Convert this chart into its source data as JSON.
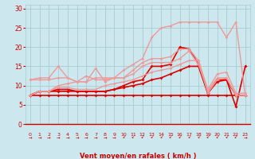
{
  "title": "",
  "xlabel": "Vent moyen/en rafales ( km/h )",
  "bg_color": "#cce8ee",
  "grid_color": "#aacccc",
  "axis_color": "#cc0000",
  "text_color": "#cc0000",
  "xlim": [
    -0.5,
    23.5
  ],
  "ylim": [
    0,
    31
  ],
  "yticks": [
    0,
    5,
    10,
    15,
    20,
    25,
    30
  ],
  "xticks": [
    0,
    1,
    2,
    3,
    4,
    5,
    6,
    7,
    8,
    9,
    10,
    11,
    12,
    13,
    14,
    15,
    16,
    17,
    18,
    19,
    20,
    21,
    22,
    23
  ],
  "lines": [
    {
      "x": [
        0,
        1,
        2,
        3,
        4,
        5,
        6,
        7,
        8,
        9,
        10,
        11,
        12,
        13,
        14,
        15,
        16,
        17,
        18,
        19,
        20,
        21,
        22,
        23
      ],
      "y": [
        7.5,
        7.5,
        7.5,
        7.5,
        7.5,
        7.5,
        7.5,
        7.5,
        7.5,
        7.5,
        7.5,
        7.5,
        7.5,
        7.5,
        7.5,
        7.5,
        7.5,
        7.5,
        7.5,
        7.5,
        7.5,
        7.5,
        7.5,
        7.5
      ],
      "color": "#dd0000",
      "lw": 1.2,
      "marker": "D",
      "ms": 2.0
    },
    {
      "x": [
        0,
        1,
        2,
        3,
        4,
        5,
        6,
        7,
        8,
        9,
        10,
        11,
        12,
        13,
        14,
        15,
        16,
        17,
        18,
        19,
        20,
        21,
        22,
        23
      ],
      "y": [
        7.5,
        8.5,
        8.5,
        8.5,
        8.5,
        8.5,
        8.5,
        8.5,
        8.5,
        9.0,
        9.5,
        10.0,
        10.5,
        11.5,
        12.0,
        13.0,
        14.0,
        15.0,
        15.0,
        8.0,
        11.0,
        11.5,
        7.5,
        7.5
      ],
      "color": "#dd0000",
      "lw": 1.2,
      "marker": "D",
      "ms": 2.0
    },
    {
      "x": [
        0,
        1,
        2,
        3,
        4,
        5,
        6,
        7,
        8,
        9,
        10,
        11,
        12,
        13,
        14,
        15,
        16,
        17,
        18,
        19,
        20,
        21,
        22,
        23
      ],
      "y": [
        7.5,
        8.5,
        8.5,
        9.0,
        9.0,
        8.5,
        8.5,
        8.5,
        8.5,
        9.0,
        10.0,
        11.0,
        11.5,
        15.0,
        15.0,
        15.5,
        20.0,
        19.5,
        15.5,
        8.0,
        11.5,
        11.5,
        4.5,
        15.0
      ],
      "color": "#dd0000",
      "lw": 1.2,
      "marker": "D",
      "ms": 2.0
    },
    {
      "x": [
        0,
        1,
        2,
        3,
        4,
        5,
        6,
        7,
        8,
        9,
        10,
        11,
        12,
        13,
        14,
        15,
        16,
        17,
        18,
        19,
        20,
        21,
        22,
        23
      ],
      "y": [
        11.5,
        11.5,
        11.5,
        12.0,
        12.0,
        11.0,
        11.0,
        12.0,
        12.0,
        12.0,
        12.0,
        13.0,
        15.0,
        16.0,
        16.0,
        16.0,
        17.0,
        19.0,
        15.5,
        8.5,
        12.0,
        12.0,
        7.5,
        7.5
      ],
      "color": "#ee9999",
      "lw": 1.0,
      "marker": "D",
      "ms": 1.8
    },
    {
      "x": [
        0,
        1,
        2,
        3,
        4,
        5,
        6,
        7,
        8,
        9,
        10,
        11,
        12,
        13,
        14,
        15,
        16,
        17,
        18,
        19,
        20,
        21,
        22,
        23
      ],
      "y": [
        11.5,
        12.0,
        12.0,
        15.0,
        12.0,
        11.0,
        12.5,
        11.5,
        11.5,
        12.0,
        12.0,
        14.0,
        16.0,
        17.0,
        17.0,
        17.5,
        19.5,
        19.5,
        16.5,
        9.0,
        13.0,
        13.5,
        8.0,
        8.0
      ],
      "color": "#ee9999",
      "lw": 1.0,
      "marker": "D",
      "ms": 1.8
    },
    {
      "x": [
        0,
        1,
        2,
        3,
        4,
        5,
        6,
        7,
        8,
        9,
        10,
        11,
        12,
        13,
        14,
        15,
        16,
        17,
        18,
        19,
        20,
        21,
        22,
        23
      ],
      "y": [
        7.5,
        8.5,
        8.5,
        10.0,
        10.5,
        11.0,
        11.0,
        14.5,
        11.0,
        12.0,
        14.0,
        15.5,
        17.0,
        22.5,
        25.0,
        25.5,
        26.5,
        26.5,
        26.5,
        26.5,
        26.5,
        22.5,
        26.5,
        7.5
      ],
      "color": "#ee9999",
      "lw": 1.0,
      "marker": "D",
      "ms": 1.8
    },
    {
      "x": [
        0,
        1,
        2,
        3,
        4,
        5,
        6,
        7,
        8,
        9,
        10,
        11,
        12,
        13,
        14,
        15,
        16,
        17,
        18,
        19,
        20,
        21,
        22,
        23
      ],
      "y": [
        7.5,
        8.5,
        8.5,
        9.5,
        9.5,
        9.0,
        9.0,
        9.0,
        10.0,
        10.5,
        11.0,
        11.5,
        12.5,
        13.5,
        14.0,
        14.5,
        15.5,
        16.5,
        16.5,
        8.0,
        11.5,
        12.0,
        7.5,
        7.5
      ],
      "color": "#ee9999",
      "lw": 1.0,
      "marker": "D",
      "ms": 1.8
    }
  ],
  "wind_arrows_east": [
    0,
    1,
    2,
    3,
    4,
    5,
    6,
    7,
    8,
    9
  ],
  "wind_arrows_sw": [
    10,
    11,
    12,
    13,
    14,
    15,
    16,
    17,
    18,
    19,
    20,
    21,
    22
  ],
  "wind_arrow_east_last": [
    23
  ]
}
